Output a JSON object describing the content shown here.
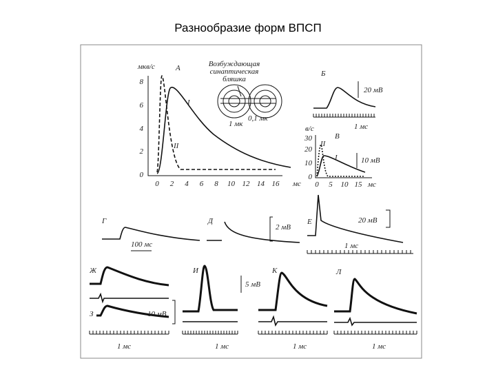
{
  "title": "Разнообразие форм ВПСП",
  "figure": {
    "panel_a": {
      "label": "А",
      "y_unit": "мкв/с",
      "yticks": [
        "0",
        "2",
        "4",
        "6",
        "8"
      ],
      "xticks": [
        "0",
        "2",
        "4",
        "6",
        "8",
        "10",
        "12",
        "14",
        "16"
      ],
      "x_unit": "мс",
      "curve_labels": [
        "I",
        "II"
      ],
      "inset_caption": [
        "Возбуждающая",
        "синаптическая",
        "бляшка"
      ],
      "inset_scale": [
        "1 мк",
        "0,1 мк"
      ]
    },
    "panel_b": {
      "label": "Б",
      "scale_v": "20 мВ",
      "scale_t": "1 мс"
    },
    "panel_v": {
      "label": "В",
      "y_unit": "в/с",
      "yticks": [
        "0",
        "10",
        "20",
        "30"
      ],
      "xticks": [
        "0",
        "5",
        "10",
        "15"
      ],
      "x_unit": "мс",
      "curve_labels": [
        "I",
        "II"
      ],
      "scale_v": "10 мВ"
    },
    "panel_g": {
      "label": "Г",
      "scale_t": "100 мс"
    },
    "panel_d": {
      "label": "Д",
      "scale_v": "2 мВ"
    },
    "panel_e": {
      "label": "Е",
      "scale_v": "20 мВ",
      "scale_t": "1 мс"
    },
    "panel_zh": {
      "label": "Ж"
    },
    "panel_z": {
      "label": "З",
      "scale_v": "10 мВ",
      "scale_t": "1 мс"
    },
    "panel_i": {
      "label": "И",
      "scale_v": "5 мВ",
      "scale_t": "1 мс"
    },
    "panel_k": {
      "label": "К",
      "scale_t": "1 мс"
    },
    "panel_l": {
      "label": "Л",
      "scale_t": "1 мс"
    }
  }
}
